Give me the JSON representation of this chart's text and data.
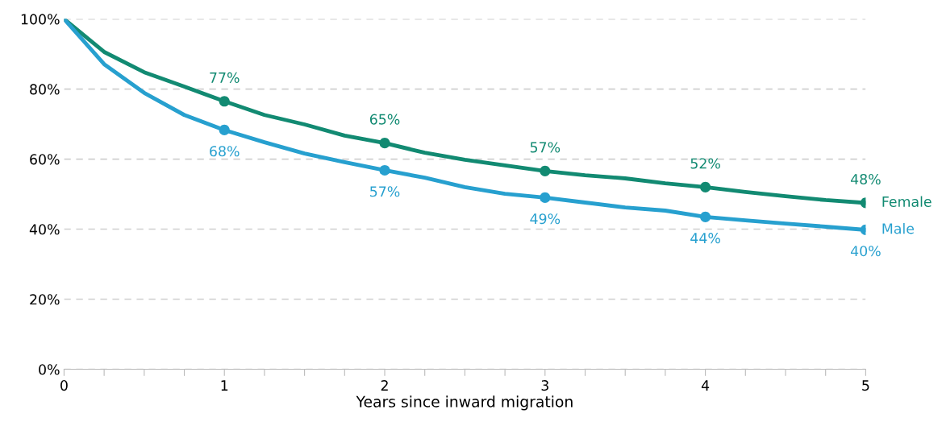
{
  "chart_data": {
    "type": "line",
    "xlabel": "Years since inward migration",
    "x": [
      0,
      0.25,
      0.5,
      0.75,
      1,
      1.25,
      1.5,
      1.75,
      2,
      2.25,
      2.5,
      2.75,
      3,
      3.25,
      3.5,
      3.75,
      4,
      4.25,
      4.5,
      4.75,
      5
    ],
    "series": [
      {
        "name": "Female",
        "color": "#128a72",
        "values": [
          100,
          90.6,
          84.8,
          80.7,
          76.5,
          72.6,
          69.9,
          66.7,
          64.6,
          61.8,
          59.8,
          58.2,
          56.6,
          55.4,
          54.5,
          53.1,
          52.0,
          50.6,
          49.4,
          48.3,
          47.5
        ]
      },
      {
        "name": "Male",
        "color": "#27a0cf",
        "values": [
          100,
          87.1,
          78.9,
          72.6,
          68.3,
          64.8,
          61.6,
          59.1,
          56.8,
          54.7,
          52.0,
          50.1,
          49.0,
          47.6,
          46.2,
          45.3,
          43.5,
          42.5,
          41.6,
          40.7,
          39.8
        ]
      },
      {
        "type": "scatter",
        "color": "#128a72",
        "x": [
          1,
          2,
          3,
          4,
          5
        ],
        "values": [
          76.5,
          64.6,
          56.6,
          52.0,
          47.5
        ],
        "value_labels": [
          "77%",
          "65%",
          "57%",
          "52%",
          "48%"
        ]
      },
      {
        "type": "scatter",
        "color": "#27a0cf",
        "x": [
          1,
          2,
          3,
          4,
          5
        ],
        "values": [
          68.3,
          56.8,
          49.0,
          43.5,
          39.8
        ],
        "value_labels": [
          "68%",
          "57%",
          "49%",
          "44%",
          "40%"
        ]
      }
    ],
    "xlim": [
      0,
      5
    ],
    "xticks": [
      0,
      {
        "value": 0.25,
        "label": null
      },
      {
        "value": 0.5,
        "label": null
      },
      {
        "value": 0.75,
        "label": null
      },
      1,
      {
        "value": 1.25,
        "label": null
      },
      {
        "value": 1.5,
        "label": null
      },
      {
        "value": 1.75,
        "label": null
      },
      2,
      {
        "value": 2.25,
        "label": null
      },
      {
        "value": 2.5,
        "label": null
      },
      {
        "value": 2.75,
        "label": null
      },
      3,
      {
        "value": 3.25,
        "label": null
      },
      {
        "value": 3.5,
        "label": null
      },
      {
        "value": 3.75,
        "label": null
      },
      4,
      {
        "value": 4.25,
        "label": null
      },
      {
        "value": 4.5,
        "label": null
      },
      {
        "value": 4.75,
        "label": null
      },
      5
    ],
    "ylim": [
      0,
      100
    ],
    "yticks": [
      {
        "value": 0,
        "label": "0%"
      },
      {
        "value": 20,
        "label": "20%"
      },
      {
        "value": 40,
        "label": "40%"
      },
      {
        "value": 60,
        "label": "60%"
      },
      {
        "value": 80,
        "label": "80%"
      },
      {
        "value": 100,
        "label": "100%"
      }
    ],
    "grid": "y",
    "legend": false,
    "line_style": "solid"
  }
}
